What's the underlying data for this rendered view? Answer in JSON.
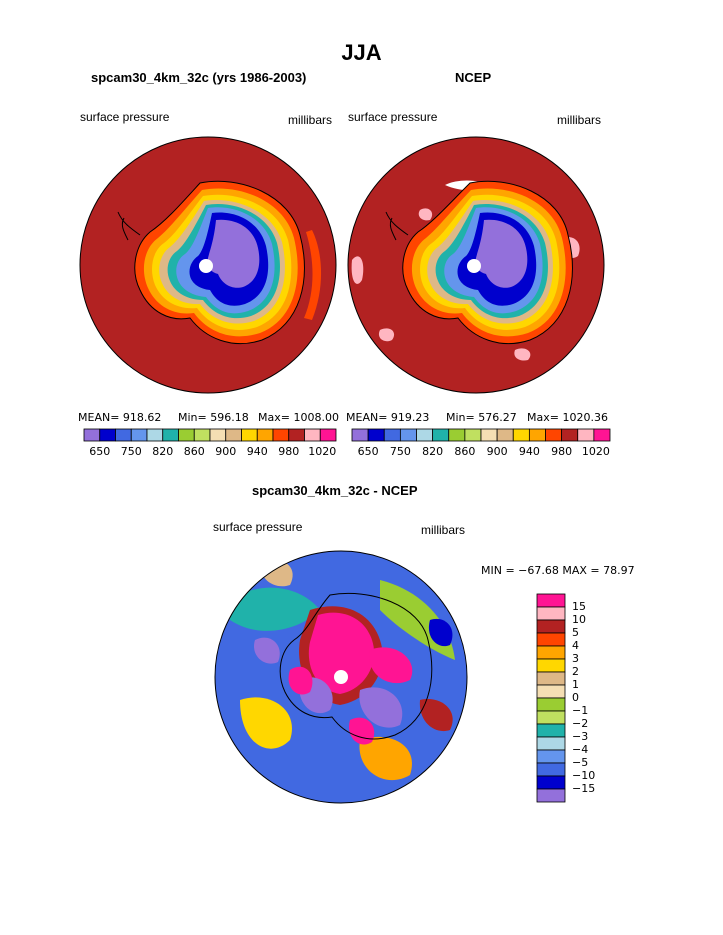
{
  "page": {
    "title": "JJA"
  },
  "panels": [
    {
      "title": "spcam30_4km_32c (yrs 1986-2003)",
      "left_label": "surface pressure",
      "right_label": "millibars",
      "stats": {
        "mean": "MEAN= 918.62",
        "min": "Min= 596.18",
        "max": "Max= 1008.00"
      }
    },
    {
      "title": "NCEP",
      "left_label": "surface pressure",
      "right_label": "millibars",
      "stats": {
        "mean": "MEAN= 919.23",
        "min": "Min= 576.27",
        "max": "Max= 1020.36"
      }
    },
    {
      "title": "spcam30_4km_32c - NCEP",
      "left_label": "surface pressure",
      "right_label": "millibars",
      "minmax": "MIN = −67.68 MAX =  78.97"
    }
  ],
  "colorbar_abs": {
    "colors": [
      "#9370db",
      "#0000cd",
      "#4169e1",
      "#6495ed",
      "#add8e6",
      "#20b2aa",
      "#9acd32",
      "#c0e060",
      "#f5deb3",
      "#deb887",
      "#ffd700",
      "#ffa500",
      "#ff4500",
      "#b22222",
      "#ffb6c1",
      "#ff1493"
    ],
    "tick_labels": [
      "650",
      "750",
      "820",
      "860",
      "900",
      "940",
      "980",
      "1020"
    ]
  },
  "colorbar_diff": {
    "colors": [
      "#ff1493",
      "#ffb6c1",
      "#b22222",
      "#ff4500",
      "#ffa500",
      "#ffd700",
      "#deb887",
      "#f5deb3",
      "#9acd32",
      "#c0e060",
      "#20b2aa",
      "#add8e6",
      "#6495ed",
      "#4169e1",
      "#0000cd",
      "#9370db"
    ],
    "tick_labels": [
      "15",
      "10",
      "5",
      "4",
      "3",
      "2",
      "1",
      "0",
      "−1",
      "−2",
      "−3",
      "−4",
      "−5",
      "−10",
      "−15"
    ]
  },
  "chart_data": [
    {
      "type": "heatmap",
      "title": "spcam30_4km_32c (yrs 1986-2003)",
      "variable": "surface pressure",
      "units": "millibars",
      "projection": "south polar stereographic",
      "season": "JJA",
      "mean": 918.62,
      "min": 596.18,
      "max": 1008.0,
      "contour_levels": [
        650,
        750,
        820,
        860,
        900,
        940,
        980,
        1020
      ]
    },
    {
      "type": "heatmap",
      "title": "NCEP",
      "variable": "surface pressure",
      "units": "millibars",
      "projection": "south polar stereographic",
      "season": "JJA",
      "mean": 919.23,
      "min": 576.27,
      "max": 1020.36,
      "contour_levels": [
        650,
        750,
        820,
        860,
        900,
        940,
        980,
        1020
      ]
    },
    {
      "type": "heatmap",
      "title": "spcam30_4km_32c - NCEP",
      "variable": "surface pressure",
      "units": "millibars",
      "projection": "south polar stereographic",
      "season": "JJA",
      "min": -67.68,
      "max": 78.97,
      "contour_levels": [
        -15,
        -10,
        -5,
        -4,
        -3,
        -2,
        -1,
        0,
        1,
        2,
        3,
        4,
        5,
        10,
        15
      ]
    }
  ]
}
